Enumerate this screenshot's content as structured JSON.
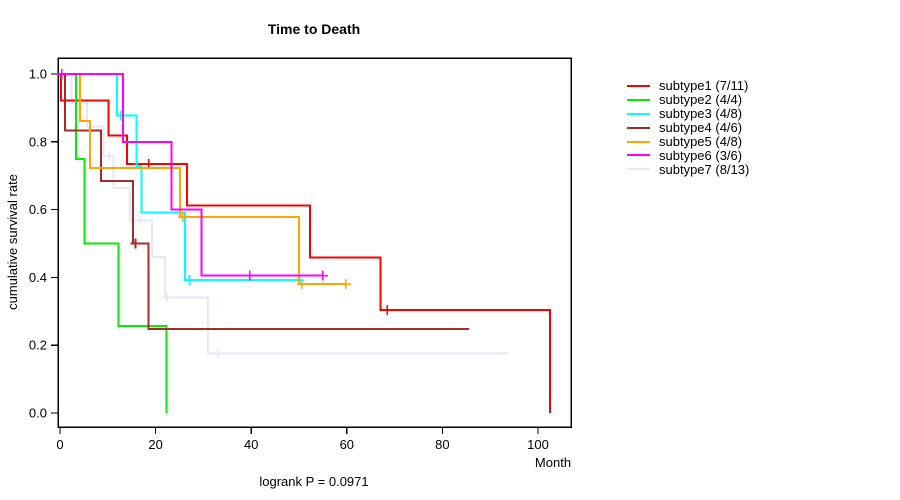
{
  "title": "Time to Death",
  "subtitle": "logrank P = 0.0971",
  "axes": {
    "x": {
      "label": "Month",
      "ticks": [
        0,
        20,
        40,
        60,
        80,
        100
      ],
      "tick_labels": [
        "0",
        "20",
        "40",
        "60",
        "80",
        "100"
      ],
      "min": 0,
      "max": 107
    },
    "y": {
      "label": "cumulative survival rate",
      "ticks": [
        1.0,
        0.8,
        0.6,
        0.4,
        0.2,
        0.0
      ],
      "tick_labels": [
        "1.0",
        "0.8",
        "0.6",
        "0.4",
        "0.2",
        "0.0"
      ],
      "min": 0.0,
      "max": 1.0
    }
  },
  "chart_data": {
    "type": "line",
    "style": "kaplan-meier-step",
    "title": "Time to Death",
    "xlabel": "Month",
    "ylabel": "cumulative survival rate",
    "xlim": [
      0,
      107
    ],
    "ylim": [
      0.0,
      1.0
    ],
    "grid": false,
    "legend_position": "right-outside",
    "censor_marker": "plus",
    "series": [
      {
        "name": "subtype1",
        "legend_label": "subtype1 (7/11)",
        "events": 7,
        "n": 11,
        "color": "#ff0000",
        "start_level": 1.0,
        "steps": [
          [
            0.2,
            0.922
          ],
          [
            10.1,
            0.818
          ],
          [
            14.0,
            0.735
          ],
          [
            26.6,
            0.612
          ],
          [
            52.3,
            0.459
          ],
          [
            67.1,
            0.304
          ],
          [
            102.5,
            0.0
          ]
        ],
        "censors": [
          [
            18.6,
            0.735
          ],
          [
            68.5,
            0.304
          ]
        ],
        "end_month": 102.5
      },
      {
        "name": "subtype2",
        "legend_label": "subtype2 (4/4)",
        "events": 4,
        "n": 4,
        "color": "#00ee00",
        "start_level": 1.0,
        "steps": [
          [
            3.3,
            0.75
          ],
          [
            5.1,
            0.5
          ],
          [
            12.2,
            0.256
          ],
          [
            22.3,
            0.0
          ]
        ],
        "censors": [],
        "end_month": 22.3
      },
      {
        "name": "subtype3",
        "legend_label": "subtype3 (4/8)",
        "events": 4,
        "n": 8,
        "color": "#00ffff",
        "start_level": 1.0,
        "steps": [
          [
            11.9,
            0.878
          ],
          [
            16.0,
            0.729
          ],
          [
            17.1,
            0.592
          ],
          [
            26.2,
            0.392
          ]
        ],
        "censors": [
          [
            12.7,
            0.878
          ],
          [
            27.1,
            0.392
          ],
          [
            50.1,
            0.392
          ]
        ],
        "end_month": 50.1
      },
      {
        "name": "subtype4",
        "legend_label": "subtype4 (4/6)",
        "events": 4,
        "n": 6,
        "color": "#a52a2a",
        "start_level": 1.0,
        "steps": [
          [
            1.0,
            0.833
          ],
          [
            8.6,
            0.685
          ],
          [
            15.3,
            0.5
          ],
          [
            18.5,
            0.248
          ]
        ],
        "censors": [
          [
            15.8,
            0.5
          ]
        ],
        "end_month": 85.6
      },
      {
        "name": "subtype5",
        "legend_label": "subtype5 (4/8)",
        "events": 4,
        "n": 8,
        "color": "#ffa500",
        "start_level": 1.0,
        "steps": [
          [
            4.2,
            0.862
          ],
          [
            6.3,
            0.722
          ],
          [
            25.1,
            0.578
          ],
          [
            50.0,
            0.38
          ]
        ],
        "censors": [
          [
            25.7,
            0.578
          ],
          [
            50.6,
            0.38
          ],
          [
            59.8,
            0.38
          ]
        ],
        "end_month": 59.8
      },
      {
        "name": "subtype6",
        "legend_label": "subtype6 (3/6)",
        "events": 3,
        "n": 6,
        "color": "#ff00ff",
        "start_level": 1.0,
        "steps": [
          [
            13.2,
            0.8
          ],
          [
            23.3,
            0.6
          ],
          [
            29.6,
            0.405
          ]
        ],
        "censors": [
          [
            0.4,
            1.0
          ],
          [
            39.7,
            0.405
          ],
          [
            55.0,
            0.405
          ]
        ],
        "end_month": 55.0
      },
      {
        "name": "subtype7",
        "legend_label": "subtype7 (8/13)",
        "events": 8,
        "n": 13,
        "color": "#e6e6fa",
        "start_level": 1.0,
        "steps": [
          [
            2.4,
            0.913
          ],
          [
            5.6,
            0.845
          ],
          [
            9.1,
            0.758
          ],
          [
            11.2,
            0.663
          ],
          [
            14.6,
            0.568
          ],
          [
            19.2,
            0.46
          ],
          [
            22.0,
            0.34
          ],
          [
            31.0,
            0.175
          ]
        ],
        "censors": [
          [
            10.3,
            0.758
          ],
          [
            16.7,
            0.568
          ],
          [
            22.4,
            0.34
          ],
          [
            33.0,
            0.175
          ]
        ],
        "end_month": 93.7
      }
    ]
  }
}
